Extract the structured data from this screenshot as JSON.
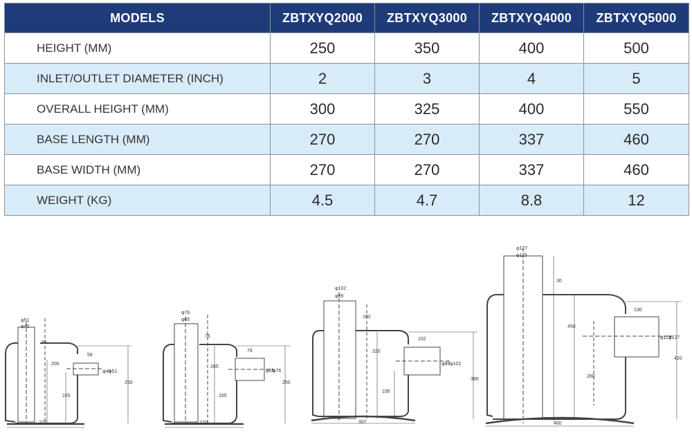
{
  "table": {
    "headers": [
      "MODELS",
      "ZBTXYQ2000",
      "ZBTXYQ3000",
      "ZBTXYQ4000",
      "ZBTXYQ5000"
    ],
    "rows": [
      {
        "label": "HEIGHT (MM)",
        "values": [
          "250",
          "350",
          "400",
          "500"
        ]
      },
      {
        "label": "INLET/OUTLET DIAMETER (INCH)",
        "values": [
          "2",
          "3",
          "4",
          "5"
        ]
      },
      {
        "label": "OVERALL HEIGHT (MM)",
        "values": [
          "300",
          "325",
          "400",
          "550"
        ]
      },
      {
        "label": "BASE LENGTH (MM)",
        "values": [
          "270",
          "270",
          "337",
          "460"
        ]
      },
      {
        "label": "BASE WIDTH (MM)",
        "values": [
          "270",
          "270",
          "337",
          "460"
        ]
      },
      {
        "label": "WEIGHT (KG)",
        "values": [
          "4.5",
          "4.7",
          "8.8",
          "12"
        ]
      }
    ]
  },
  "drawings": [
    {
      "top_dims": [
        "φ51",
        "φ40"
      ],
      "side_dims": [
        "56",
        "φ40",
        "φ51"
      ],
      "vert_dims": [
        "35",
        "200",
        "165",
        "250"
      ],
      "base": "270"
    },
    {
      "top_dims": [
        "φ76",
        "φ65"
      ],
      "side_dims": [
        "76",
        "φ65",
        "φ76"
      ],
      "vert_dims": [
        "76",
        "265",
        "165",
        "250"
      ],
      "base": "270"
    },
    {
      "top_dims": [
        "φ102",
        "φ89"
      ],
      "side_dims": [
        "102",
        "φ89",
        "φ102"
      ],
      "vert_dims": [
        "102",
        "320",
        "195",
        "395"
      ],
      "base": "337"
    },
    {
      "top_dims": [
        "φ127",
        "φ115"
      ],
      "side_dims": [
        "130",
        "φ115",
        "φ127"
      ],
      "vert_dims": [
        "30",
        "450",
        "280",
        "420"
      ],
      "base": "460"
    }
  ]
}
